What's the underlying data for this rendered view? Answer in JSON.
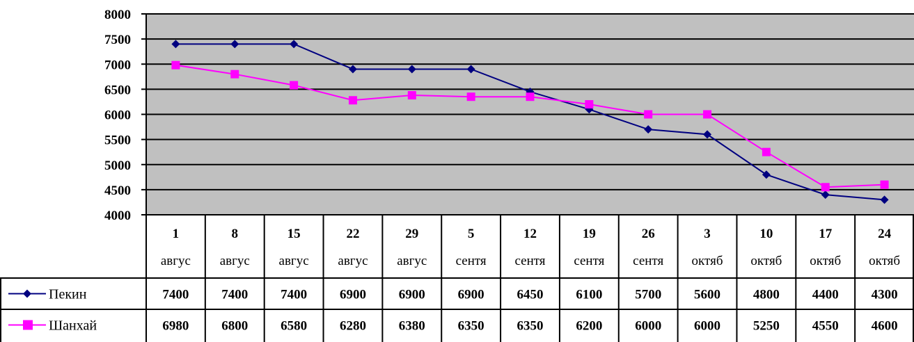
{
  "chart_data": {
    "type": "line",
    "title": "",
    "xlabel": "",
    "ylabel": "",
    "ylim": [
      4000,
      8000
    ],
    "yticks": [
      4000,
      4500,
      5000,
      5500,
      6000,
      6500,
      7000,
      7500,
      8000
    ],
    "grid": true,
    "legend_placement": "data-table-left",
    "plot_background": "#c0c0c0",
    "categories": [
      {
        "day": "1",
        "month": "авгус"
      },
      {
        "day": "8",
        "month": "авгус"
      },
      {
        "day": "15",
        "month": "авгус"
      },
      {
        "day": "22",
        "month": "авгус"
      },
      {
        "day": "29",
        "month": "авгус"
      },
      {
        "day": "5",
        "month": "сентя"
      },
      {
        "day": "12",
        "month": "сентя"
      },
      {
        "day": "19",
        "month": "сентя"
      },
      {
        "day": "26",
        "month": "сентя"
      },
      {
        "day": "3",
        "month": "октяб"
      },
      {
        "day": "10",
        "month": "октяб"
      },
      {
        "day": "17",
        "month": "октяб"
      },
      {
        "day": "24",
        "month": "октяб"
      }
    ],
    "series": [
      {
        "name": "Пекин",
        "color": "#000080",
        "marker": "diamond",
        "values": [
          7400,
          7400,
          7400,
          6900,
          6900,
          6900,
          6450,
          6100,
          5700,
          5600,
          4800,
          4400,
          4300
        ]
      },
      {
        "name": "Шанхай",
        "color": "#ff00ff",
        "marker": "square",
        "values": [
          6980,
          6800,
          6580,
          6280,
          6380,
          6350,
          6350,
          6200,
          6000,
          6000,
          5250,
          4550,
          4600
        ]
      }
    ]
  }
}
